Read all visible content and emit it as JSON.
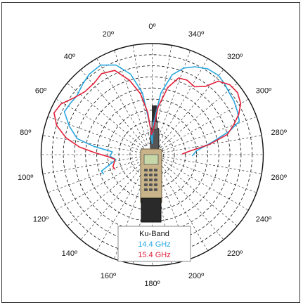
{
  "chart_data": {
    "type": "polar-line",
    "angle_labels": [
      "0º",
      "20º",
      "40º",
      "60º",
      "80º",
      "100º",
      "120º",
      "140º",
      "160º",
      "180º",
      "200º",
      "220º",
      "240º",
      "260º",
      "280º",
      "300º",
      "320º",
      "340º"
    ],
    "angle_values": [
      0,
      20,
      40,
      60,
      80,
      100,
      120,
      140,
      160,
      180,
      200,
      220,
      240,
      260,
      280,
      300,
      320,
      340
    ],
    "angle_direction": "counter-clockwise from top",
    "rings": 10,
    "grid": true,
    "legend": {
      "title": "Ku-Band",
      "placement": "bottom-center"
    },
    "series": [
      {
        "name": "14.4 GHz",
        "color": "#29a8e0",
        "points": [
          [
            268,
            3.6
          ],
          [
            275,
            4.0
          ],
          [
            282,
            5.6
          ],
          [
            287,
            7.3
          ],
          [
            291,
            8.4
          ],
          [
            297,
            8.6
          ],
          [
            303,
            8.8
          ],
          [
            309,
            8.9
          ],
          [
            314,
            9.1
          ],
          [
            320,
            9.3
          ],
          [
            327,
            9.2
          ],
          [
            334,
            8.8
          ],
          [
            340,
            8.3
          ],
          [
            346,
            7.4
          ],
          [
            352,
            5.6
          ],
          [
            357,
            3.0
          ],
          [
            0,
            1.0
          ],
          [
            4,
            2.6
          ],
          [
            9,
            5.6
          ],
          [
            15,
            7.5
          ],
          [
            22,
            8.7
          ],
          [
            30,
            9.3
          ],
          [
            38,
            9.2
          ],
          [
            45,
            8.9
          ],
          [
            52,
            8.6
          ],
          [
            58,
            8.7
          ],
          [
            64,
            8.8
          ],
          [
            71,
            7.9
          ],
          [
            78,
            6.9
          ],
          [
            82,
            5.3
          ],
          [
            86,
            3.6
          ],
          [
            92,
            3.8
          ],
          [
            98,
            3.3
          ],
          [
            103,
            3.9
          ],
          [
            108,
            4.8
          ],
          [
            112,
            4.7
          ]
        ]
      },
      {
        "name": "15.4 GHz",
        "color": "#e2203a",
        "points": [
          [
            271,
            2.7
          ],
          [
            275,
            3.3
          ],
          [
            280,
            5.2
          ],
          [
            285,
            7.0
          ],
          [
            290,
            7.8
          ],
          [
            295,
            8.6
          ],
          [
            300,
            9.2
          ],
          [
            306,
            9.5
          ],
          [
            312,
            9.4
          ],
          [
            318,
            8.9
          ],
          [
            322,
            7.8
          ],
          [
            328,
            7.2
          ],
          [
            335,
            7.4
          ],
          [
            341,
            7.3
          ],
          [
            347,
            6.2
          ],
          [
            353,
            4.3
          ],
          [
            358,
            2.1
          ],
          [
            2,
            1.8
          ],
          [
            6,
            3.8
          ],
          [
            11,
            5.6
          ],
          [
            17,
            7.0
          ],
          [
            24,
            8.3
          ],
          [
            32,
            8.6
          ],
          [
            39,
            8.3
          ],
          [
            47,
            8.3
          ],
          [
            54,
            8.7
          ],
          [
            61,
            9.4
          ],
          [
            67,
            9.6
          ],
          [
            73,
            9.0
          ],
          [
            79,
            7.9
          ],
          [
            84,
            6.6
          ],
          [
            88,
            5.2
          ],
          [
            92,
            4.1
          ],
          [
            97,
            3.4
          ],
          [
            102,
            3.5
          ],
          [
            107,
            3.7
          ],
          [
            112,
            3.6
          ]
        ]
      }
    ]
  }
}
